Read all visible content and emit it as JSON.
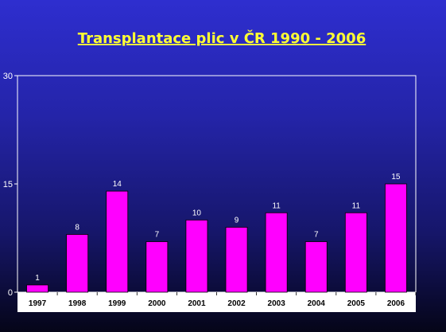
{
  "chart_data": {
    "type": "bar",
    "title": "Transplantace plic v ČR 1990 - 2006",
    "categories": [
      "1997",
      "1998",
      "1999",
      "2000",
      "2001",
      "2002",
      "2003",
      "2004",
      "2005",
      "2006"
    ],
    "values": [
      1,
      8,
      14,
      7,
      10,
      9,
      11,
      7,
      11,
      15
    ],
    "ylim": [
      0,
      30
    ],
    "yticks": [
      "0",
      "15",
      "30"
    ],
    "xlabel": "",
    "ylabel": "",
    "grid": false,
    "legend": "none"
  },
  "colors": {
    "bar_fill": "#ff00ff",
    "title": "#ffff33",
    "axis": "#ffffff",
    "category_strip": "#ffffff"
  }
}
